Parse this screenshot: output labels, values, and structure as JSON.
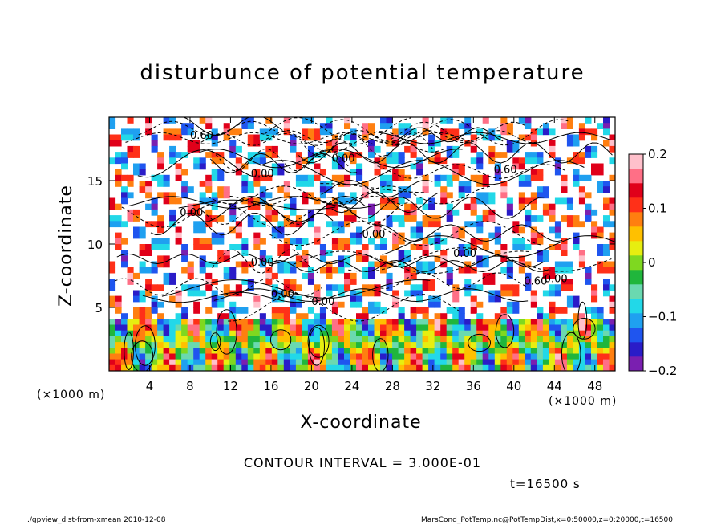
{
  "chart_data": {
    "type": "heatmap",
    "title": "disturbunce of potential temperature",
    "xlabel": "X-coordinate",
    "ylabel": "Z-coordinate",
    "x_unit": "(×1000 m)",
    "xlim": [
      0,
      50
    ],
    "ylim": [
      0,
      20
    ],
    "x_ticks": [
      4,
      8,
      12,
      16,
      20,
      24,
      28,
      32,
      36,
      40,
      44,
      48
    ],
    "y_ticks": [
      5,
      10,
      15
    ],
    "colorbar": {
      "min": -0.2,
      "max": 0.2,
      "ticks": [
        0.2,
        0.1,
        0,
        -0.1,
        -0.2
      ],
      "tick_labels": [
        "0.2",
        "0.1",
        "0",
        "−0.1",
        "−0.2"
      ],
      "colors": [
        "#7a1fb0",
        "#2a1cc8",
        "#1f55ef",
        "#1fa0f0",
        "#22d8e8",
        "#6ad9b0",
        "#20b63c",
        "#7fd820",
        "#e7ee10",
        "#ffc000",
        "#ff7f10",
        "#ff3018",
        "#e0001a",
        "#ff6f86",
        "#ffc0cb"
      ]
    },
    "contour_interval": "CONTOUR INTERVAL = 3.000E-01",
    "contour_labels": [
      "0.60",
      "0.00",
      "0.00",
      "0.60",
      "0.00",
      "0.00",
      "0.00",
      "0.00",
      "0.00",
      "0.00",
      "0.60",
      "0.00"
    ],
    "time": "t=16500 s"
  },
  "footer": {
    "left": "./gpview_dist-from-xmean   2010-12-08",
    "right": "MarsCond_PotTemp.nc@PotTempDist,x=0:50000,z=0:20000,t=16500"
  }
}
